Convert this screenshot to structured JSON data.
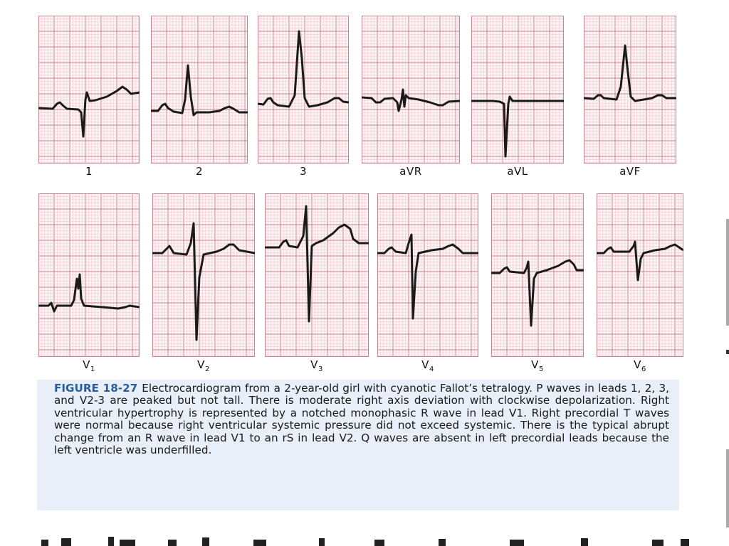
{
  "figure": {
    "leads_row1": [
      "1",
      "2",
      "3",
      "aVR",
      "aVL",
      "aVF"
    ],
    "leads_row2": [
      {
        "base": "V",
        "sub": "1"
      },
      {
        "base": "V",
        "sub": "2"
      },
      {
        "base": "V",
        "sub": "3"
      },
      {
        "base": "V",
        "sub": "4"
      },
      {
        "base": "V",
        "sub": "5"
      },
      {
        "base": "V",
        "sub": "6"
      }
    ],
    "colors": {
      "grid_major": "#c9838f",
      "grid_minor": "#efc9cf",
      "trace": "#1a1a1a",
      "caption_bg": "#e9eff8",
      "figure_number": "#2c5d9b"
    }
  },
  "caption": {
    "number": "FIGURE 18-27",
    "text": "Electrocardiogram from a 2-year-old girl with cyanotic Fallot’s tetralogy. P waves in leads 1, 2, 3, and V2-3 are peaked but not tall. There is moderate right axis deviation with clockwise depolarization. Right ventricular hypertrophy is represented by a notched monophasic R wave in lead V1. Right precordial T waves were normal because right ventricular systemic pressure did not exceed systemic. There is the typical abrupt change from an R wave in lead V1 to an rS in lead V2. Q waves are absent in left precordial leads because the left ventricle was underfilled."
  }
}
